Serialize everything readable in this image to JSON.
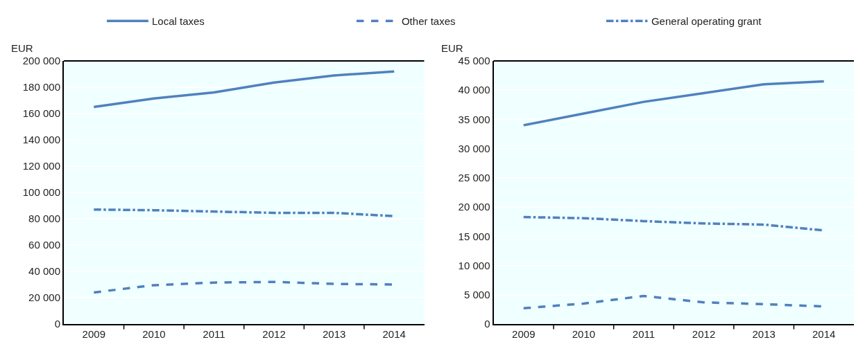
{
  "chart_data": [
    {
      "type": "line",
      "ylabel": "EUR",
      "categories": [
        "2009",
        "2010",
        "2011",
        "2012",
        "2013",
        "2014"
      ],
      "ylim": [
        0,
        200000
      ],
      "yticks": [
        {
          "value": 0,
          "label": "0"
        },
        {
          "value": 20000,
          "label": "20 000"
        },
        {
          "value": 40000,
          "label": "40 000"
        },
        {
          "value": 60000,
          "label": "60 000"
        },
        {
          "value": 80000,
          "label": "80 000"
        },
        {
          "value": 100000,
          "label": "100 000"
        },
        {
          "value": 120000,
          "label": "120 000"
        },
        {
          "value": 140000,
          "label": "140 000"
        },
        {
          "value": 160000,
          "label": "160 000"
        },
        {
          "value": 180000,
          "label": "180 000"
        },
        {
          "value": 200000,
          "label": "200 000"
        }
      ],
      "grid": true,
      "legend": "top",
      "marker": "none",
      "series": [
        {
          "name": "Local taxes",
          "color": "#4f81bd",
          "line_style": "solid",
          "values": [
            165000,
            171500,
            176000,
            183500,
            189000,
            192000
          ]
        },
        {
          "name": "Other taxes",
          "color": "#4f81bd",
          "line_style": "dashed",
          "values": [
            24000,
            29500,
            31500,
            32000,
            30500,
            30000
          ]
        },
        {
          "name": "General operating grant",
          "color": "#4f81bd",
          "line_style": "dashdot",
          "values": [
            87000,
            86500,
            85500,
            84500,
            84500,
            82000
          ]
        }
      ]
    },
    {
      "type": "line",
      "ylabel": "EUR",
      "categories": [
        "2009",
        "2010",
        "2011",
        "2012",
        "2013",
        "2014"
      ],
      "ylim": [
        0,
        45000
      ],
      "yticks": [
        {
          "value": 0,
          "label": "0"
        },
        {
          "value": 5000,
          "label": "5 000"
        },
        {
          "value": 10000,
          "label": "10 000"
        },
        {
          "value": 15000,
          "label": "15 000"
        },
        {
          "value": 20000,
          "label": "20 000"
        },
        {
          "value": 25000,
          "label": "25 000"
        },
        {
          "value": 30000,
          "label": "30 000"
        },
        {
          "value": 35000,
          "label": "35 000"
        },
        {
          "value": 40000,
          "label": "40 000"
        },
        {
          "value": 45000,
          "label": "45 000"
        }
      ],
      "grid": true,
      "marker": "none",
      "series": [
        {
          "color": "#4f81bd",
          "line_style": "solid",
          "values": [
            34000,
            36000,
            38000,
            39500,
            41000,
            41500
          ]
        },
        {
          "color": "#4f81bd",
          "line_style": "dashed",
          "values": [
            2700,
            3500,
            4800,
            3700,
            3400,
            3000
          ]
        },
        {
          "color": "#4f81bd",
          "line_style": "dashdot",
          "values": [
            18300,
            18100,
            17600,
            17200,
            17000,
            16000
          ]
        }
      ]
    }
  ]
}
